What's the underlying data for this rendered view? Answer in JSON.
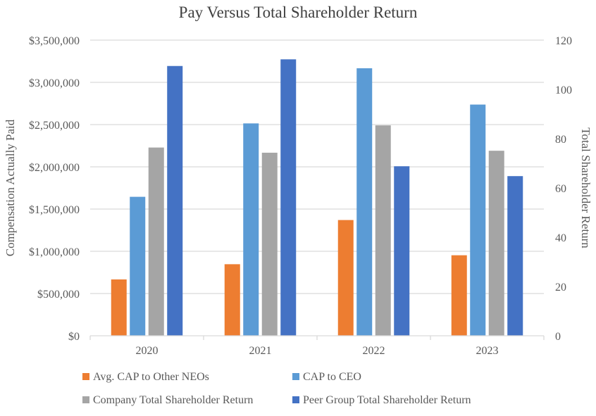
{
  "chart_data": {
    "type": "bar",
    "title": "Pay Versus Total Shareholder Return",
    "categories": [
      "2020",
      "2021",
      "2022",
      "2023"
    ],
    "ylabel": "Compensation Actually Paid",
    "ylabel_right": "Total Shareholder Return",
    "ylim": [
      0,
      3500000
    ],
    "ylim_right": [
      0,
      120
    ],
    "yticks": [
      "$0",
      "$500,000",
      "$1,000,000",
      "$1,500,000",
      "$2,000,000",
      "$2,500,000",
      "$3,000,000",
      "$3,500,000"
    ],
    "yticks_right": [
      "0",
      "20",
      "40",
      "60",
      "80",
      "100",
      "120"
    ],
    "grid": true,
    "legend_position": "bottom",
    "series": [
      {
        "name": "Avg. CAP to Other NEOs",
        "axis": "left",
        "color": "#ED7D31",
        "values": [
          667000,
          847000,
          1370000,
          953000
        ]
      },
      {
        "name": "CAP to CEO",
        "axis": "left",
        "color": "#5B9BD5",
        "values": [
          1645000,
          2514000,
          3167000,
          2737000
        ]
      },
      {
        "name": "Company Total Shareholder Return",
        "axis": "right",
        "color": "#A5A5A5",
        "values": [
          76.4,
          74.3,
          85.4,
          75.1
        ]
      },
      {
        "name": "Peer Group Total Shareholder Return",
        "axis": "right",
        "color": "#4472C4",
        "values": [
          109.5,
          112.2,
          68.8,
          64.8
        ]
      }
    ]
  }
}
